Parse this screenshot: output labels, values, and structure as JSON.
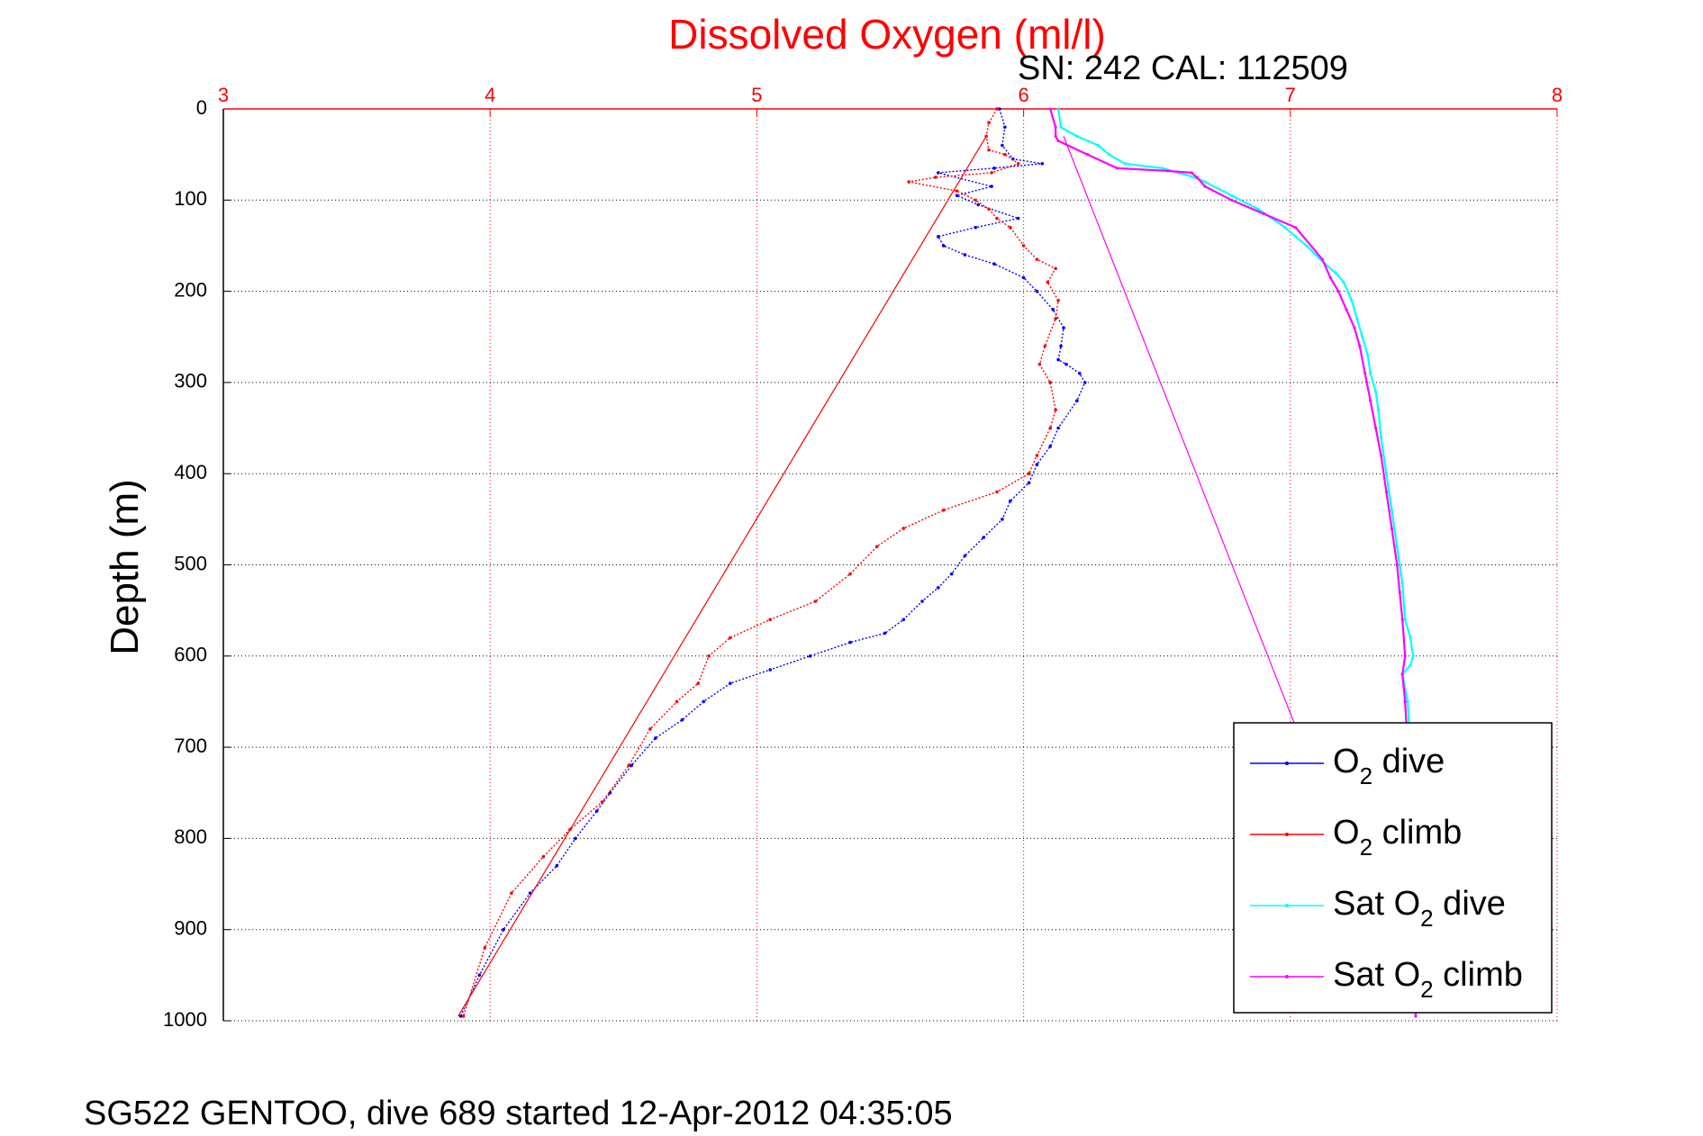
{
  "chart_data": {
    "type": "line",
    "title": "Dissolved Oxygen (ml/l)",
    "subtitle": "SN: 242  CAL: 112509",
    "ylabel": "Depth (m)",
    "footer": "SG522 GENTOO, dive 689 started 12-Apr-2012 04:35:05",
    "xlim": [
      3,
      8
    ],
    "ylim": [
      0,
      1000
    ],
    "y_reversed": true,
    "x_ticks": [
      3,
      4,
      5,
      6,
      7,
      8
    ],
    "y_ticks": [
      0,
      100,
      200,
      300,
      400,
      500,
      600,
      700,
      800,
      900,
      1000
    ],
    "grid": true,
    "legend_position": "bottom-right",
    "colors": {
      "o2_dive": "#0000ff",
      "o2_climb": "#ff0000",
      "sat_dive": "#00ffff",
      "sat_climb": "#ff00ff",
      "x_axis": "#ff0000",
      "grid_x": "#ff0000",
      "grid_y": "#000000"
    },
    "series": [
      {
        "name": "O2 dive",
        "legend_main": "O",
        "legend_sub": "2",
        "legend_rest": " dive",
        "color": "#0000ff",
        "style": "dots",
        "x": [
          5.91,
          5.93,
          5.92,
          5.96,
          6.07,
          5.89,
          5.68,
          5.88,
          5.75,
          5.83,
          5.98,
          5.82,
          5.68,
          5.7,
          5.78,
          5.89,
          6.0,
          6.05,
          6.11,
          6.15,
          6.14,
          6.13,
          6.16,
          6.21,
          6.23,
          6.2,
          6.13,
          6.1,
          6.05,
          6.02,
          5.95,
          5.92,
          5.85,
          5.78,
          5.73,
          5.68,
          5.62,
          5.55,
          5.48,
          5.35,
          5.2,
          5.05,
          4.9,
          4.8,
          4.72,
          4.62,
          4.53,
          4.45,
          4.4,
          4.32,
          4.25,
          4.15,
          4.05,
          3.96,
          3.89
        ],
        "y": [
          0,
          20,
          40,
          55,
          60,
          65,
          70,
          85,
          95,
          105,
          120,
          130,
          140,
          150,
          160,
          170,
          185,
          200,
          220,
          240,
          260,
          275,
          280,
          290,
          300,
          320,
          350,
          370,
          390,
          410,
          430,
          450,
          470,
          490,
          510,
          525,
          540,
          560,
          575,
          585,
          600,
          615,
          630,
          650,
          670,
          690,
          720,
          750,
          770,
          800,
          830,
          860,
          900,
          950,
          995
        ]
      },
      {
        "name": "O2 climb",
        "legend_main": "O",
        "legend_sub": "2",
        "legend_rest": " climb",
        "color": "#ff0000",
        "style": "dots",
        "x": [
          5.9,
          5.87,
          5.86,
          5.87,
          5.93,
          5.98,
          5.88,
          5.67,
          5.57,
          5.75,
          5.82,
          5.87,
          5.9,
          5.95,
          6.0,
          6.05,
          6.12,
          6.09,
          6.13,
          6.12,
          6.08,
          6.06,
          6.1,
          6.12,
          6.1,
          6.05,
          6.02,
          5.9,
          5.7,
          5.55,
          5.45,
          5.35,
          5.22,
          5.05,
          4.9,
          4.82,
          4.78,
          4.7,
          4.6,
          4.52,
          4.42,
          4.3,
          4.2,
          4.08,
          3.98,
          3.9
        ],
        "y": [
          0,
          15,
          30,
          45,
          50,
          60,
          70,
          75,
          80,
          90,
          100,
          110,
          120,
          130,
          150,
          165,
          175,
          190,
          210,
          230,
          260,
          280,
          300,
          330,
          350,
          380,
          400,
          420,
          440,
          460,
          480,
          510,
          540,
          560,
          580,
          600,
          630,
          650,
          680,
          720,
          760,
          790,
          820,
          860,
          920,
          995
        ]
      },
      {
        "name": "Sat O2 dive",
        "legend_main": "Sat O",
        "legend_sub": "2",
        "legend_rest": " dive",
        "color": "#00ffff",
        "style": "line",
        "x": [
          6.13,
          6.14,
          6.2,
          6.28,
          6.32,
          6.38,
          6.52,
          6.58,
          6.64,
          6.68,
          6.78,
          6.88,
          6.98,
          7.06,
          7.13,
          7.17,
          7.2,
          7.23,
          7.25,
          7.27,
          7.29,
          7.3,
          7.32,
          7.33,
          7.34,
          7.36,
          7.38,
          7.4,
          7.42,
          7.43,
          7.45,
          7.46,
          7.45,
          7.42,
          7.44,
          7.45,
          7.46,
          7.47
        ],
        "y": [
          0,
          20,
          30,
          40,
          50,
          60,
          65,
          70,
          75,
          80,
          95,
          110,
          130,
          150,
          170,
          180,
          190,
          210,
          230,
          250,
          270,
          290,
          310,
          330,
          360,
          400,
          440,
          480,
          520,
          560,
          580,
          600,
          610,
          620,
          650,
          700,
          800,
          995
        ]
      },
      {
        "name": "Sat O2 climb",
        "legend_main": "Sat O",
        "legend_sub": "2",
        "legend_rest": " climb",
        "color": "#ff00ff",
        "style": "line",
        "x": [
          6.1,
          6.12,
          6.12,
          6.13,
          6.24,
          6.35,
          6.54,
          6.63,
          6.65,
          6.68,
          6.78,
          6.9,
          7.02,
          7.12,
          7.15,
          7.18,
          7.21,
          7.24,
          7.26,
          7.28,
          7.3,
          7.32,
          7.34,
          7.36,
          7.38,
          7.4,
          7.41,
          7.42,
          7.43,
          7.42,
          7.43,
          7.44,
          7.45,
          7.46,
          7.47
        ],
        "y": [
          0,
          20,
          30,
          35,
          50,
          65,
          68,
          70,
          75,
          85,
          100,
          115,
          130,
          165,
          185,
          200,
          220,
          240,
          260,
          290,
          320,
          350,
          380,
          420,
          460,
          500,
          530,
          560,
          600,
          620,
          650,
          700,
          800,
          900,
          995
        ]
      },
      {
        "name": "O2 transit",
        "color": "#ff0000",
        "style": "thin",
        "x": [
          5.86,
          3.88
        ],
        "y": [
          30,
          995
        ]
      },
      {
        "name": "Sat transit",
        "color": "#ff00ff",
        "style": "thin",
        "x": [
          6.15,
          7.05
        ],
        "y": [
          30,
          700
        ]
      }
    ]
  }
}
